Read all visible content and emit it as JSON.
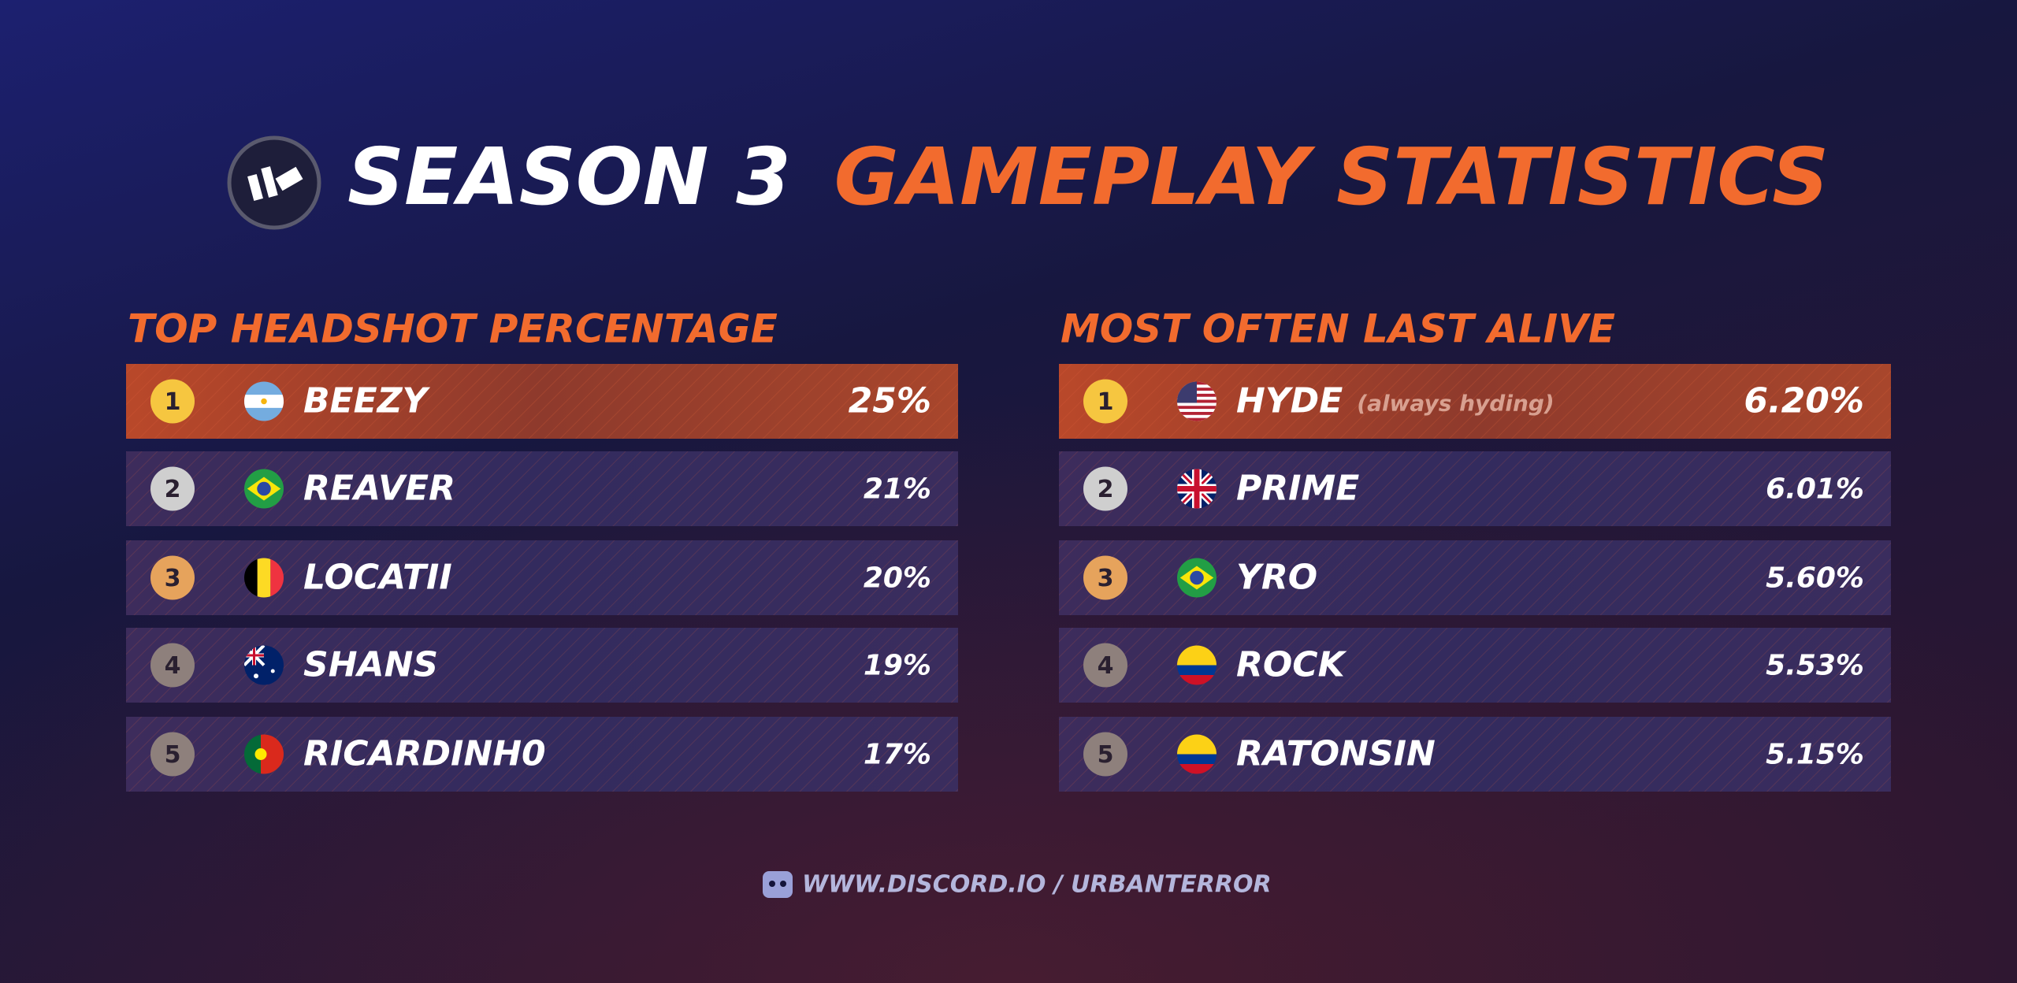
{
  "header": {
    "title_white": "SEASON 3",
    "title_orange": "GAMEPLAY STATISTICS"
  },
  "tables": [
    {
      "title": "TOP HEADSHOT PERCENTAGE",
      "rows": [
        {
          "rank": "1",
          "player": "BEEZY",
          "value": "25%"
        },
        {
          "rank": "2",
          "player": "REAVER",
          "value": "21%"
        },
        {
          "rank": "3",
          "player": "LOCATII",
          "value": "20%"
        },
        {
          "rank": "4",
          "player": "SHANS",
          "value": "19%"
        },
        {
          "rank": "5",
          "player": "RICARDINH0",
          "value": "17%"
        }
      ]
    },
    {
      "title": "MOST OFTEN LAST ALIVE",
      "rows": [
        {
          "rank": "1",
          "player": "HYDE",
          "note": "(always hyding)",
          "value": "6.20%"
        },
        {
          "rank": "2",
          "player": "PRIME",
          "value": "6.01%"
        },
        {
          "rank": "3",
          "player": "YRO",
          "value": "5.60%"
        },
        {
          "rank": "4",
          "player": "ROCK",
          "value": "5.53%"
        },
        {
          "rank": "5",
          "player": "RATONSIN",
          "value": "5.15%"
        }
      ]
    }
  ],
  "footer": {
    "link": "WWW.DISCORD.IO / URBANTERROR"
  }
}
